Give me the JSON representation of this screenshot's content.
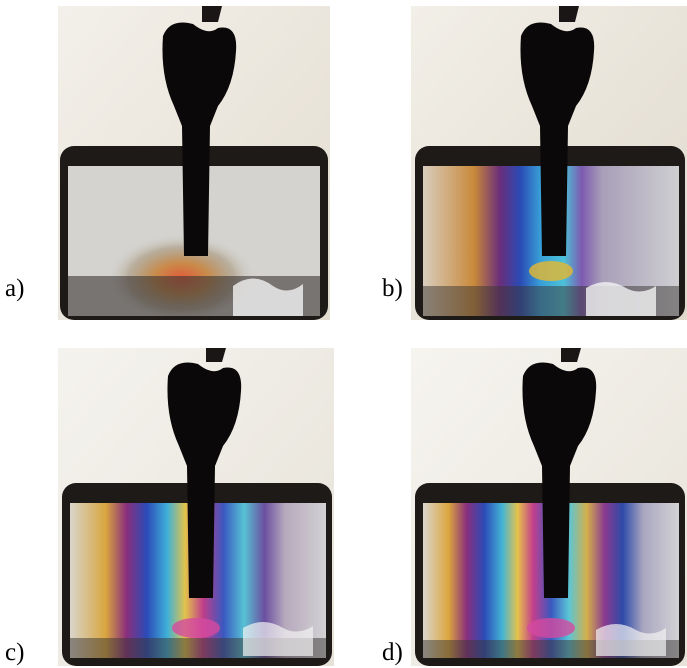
{
  "panels": [
    {
      "label": "a)",
      "fringe_level": 1
    },
    {
      "label": "b)",
      "fringe_level": 2
    },
    {
      "label": "c)",
      "fringe_level": 3
    },
    {
      "label": "d)",
      "fringe_level": 4
    }
  ],
  "colors": {
    "background": "#ffffff",
    "light_field": "#efece4",
    "block_frame": "#1e1a17",
    "implant": "#0a0808"
  }
}
